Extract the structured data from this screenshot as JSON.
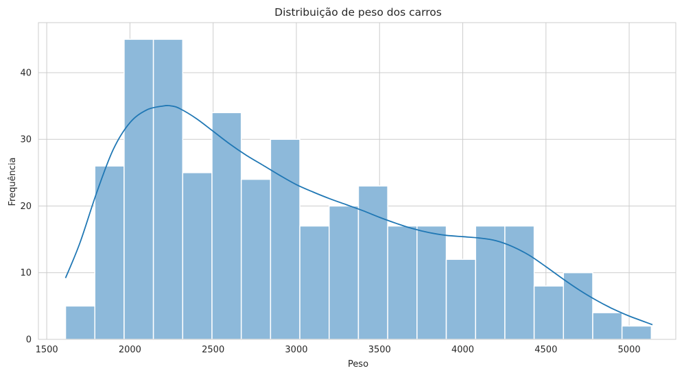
{
  "chart_data": {
    "type": "bar",
    "subtype": "histogram-with-kde",
    "title": "Distribuição de peso dos carros",
    "xlabel": "Peso",
    "ylabel": "Frequência",
    "xlim": [
      1450,
      5280
    ],
    "ylim": [
      0,
      47.5
    ],
    "xticks": [
      1500,
      2000,
      2500,
      3000,
      3500,
      4000,
      4500,
      5000
    ],
    "yticks": [
      0,
      10,
      20,
      30,
      40
    ],
    "grid": true,
    "bins": [
      {
        "x0": 1613,
        "x1": 1789,
        "count": 5
      },
      {
        "x0": 1789,
        "x1": 1965,
        "count": 26
      },
      {
        "x0": 1965,
        "x1": 2141,
        "count": 45
      },
      {
        "x0": 2141,
        "x1": 2317,
        "count": 45
      },
      {
        "x0": 2317,
        "x1": 2493,
        "count": 25
      },
      {
        "x0": 2493,
        "x1": 2669,
        "count": 34
      },
      {
        "x0": 2669,
        "x1": 2845,
        "count": 24
      },
      {
        "x0": 2845,
        "x1": 3021,
        "count": 30
      },
      {
        "x0": 3021,
        "x1": 3197,
        "count": 17
      },
      {
        "x0": 3197,
        "x1": 3373,
        "count": 20
      },
      {
        "x0": 3373,
        "x1": 3549,
        "count": 23
      },
      {
        "x0": 3549,
        "x1": 3725,
        "count": 17
      },
      {
        "x0": 3725,
        "x1": 3901,
        "count": 17
      },
      {
        "x0": 3901,
        "x1": 4077,
        "count": 12
      },
      {
        "x0": 4077,
        "x1": 4253,
        "count": 17
      },
      {
        "x0": 4253,
        "x1": 4429,
        "count": 17
      },
      {
        "x0": 4429,
        "x1": 4605,
        "count": 8
      },
      {
        "x0": 4605,
        "x1": 4781,
        "count": 10
      },
      {
        "x0": 4781,
        "x1": 4957,
        "count": 4
      },
      {
        "x0": 4957,
        "x1": 5133,
        "count": 2
      }
    ],
    "kde": {
      "x": [
        1613,
        1700,
        1800,
        1900,
        2000,
        2100,
        2200,
        2250,
        2300,
        2400,
        2500,
        2600,
        2700,
        2800,
        2900,
        3000,
        3100,
        3200,
        3300,
        3400,
        3500,
        3600,
        3700,
        3800,
        3900,
        4000,
        4100,
        4200,
        4300,
        4400,
        4500,
        4600,
        4700,
        4800,
        4900,
        5000,
        5140
      ],
      "y": [
        9.2,
        14.5,
        22.0,
        28.5,
        32.5,
        34.4,
        35.0,
        35.0,
        34.6,
        33.1,
        31.2,
        29.3,
        27.6,
        26.1,
        24.6,
        23.2,
        22.1,
        21.1,
        20.2,
        19.3,
        18.3,
        17.4,
        16.6,
        16.0,
        15.6,
        15.4,
        15.2,
        14.8,
        13.9,
        12.6,
        10.9,
        9.1,
        7.4,
        5.9,
        4.6,
        3.5,
        2.2
      ]
    },
    "colors": {
      "bar_fill": "#8db9da",
      "bar_edge": "#ffffff",
      "kde_line": "#1f77b4",
      "grid": "#cccccc",
      "spine": "#cccccc",
      "text": "#262626"
    }
  }
}
